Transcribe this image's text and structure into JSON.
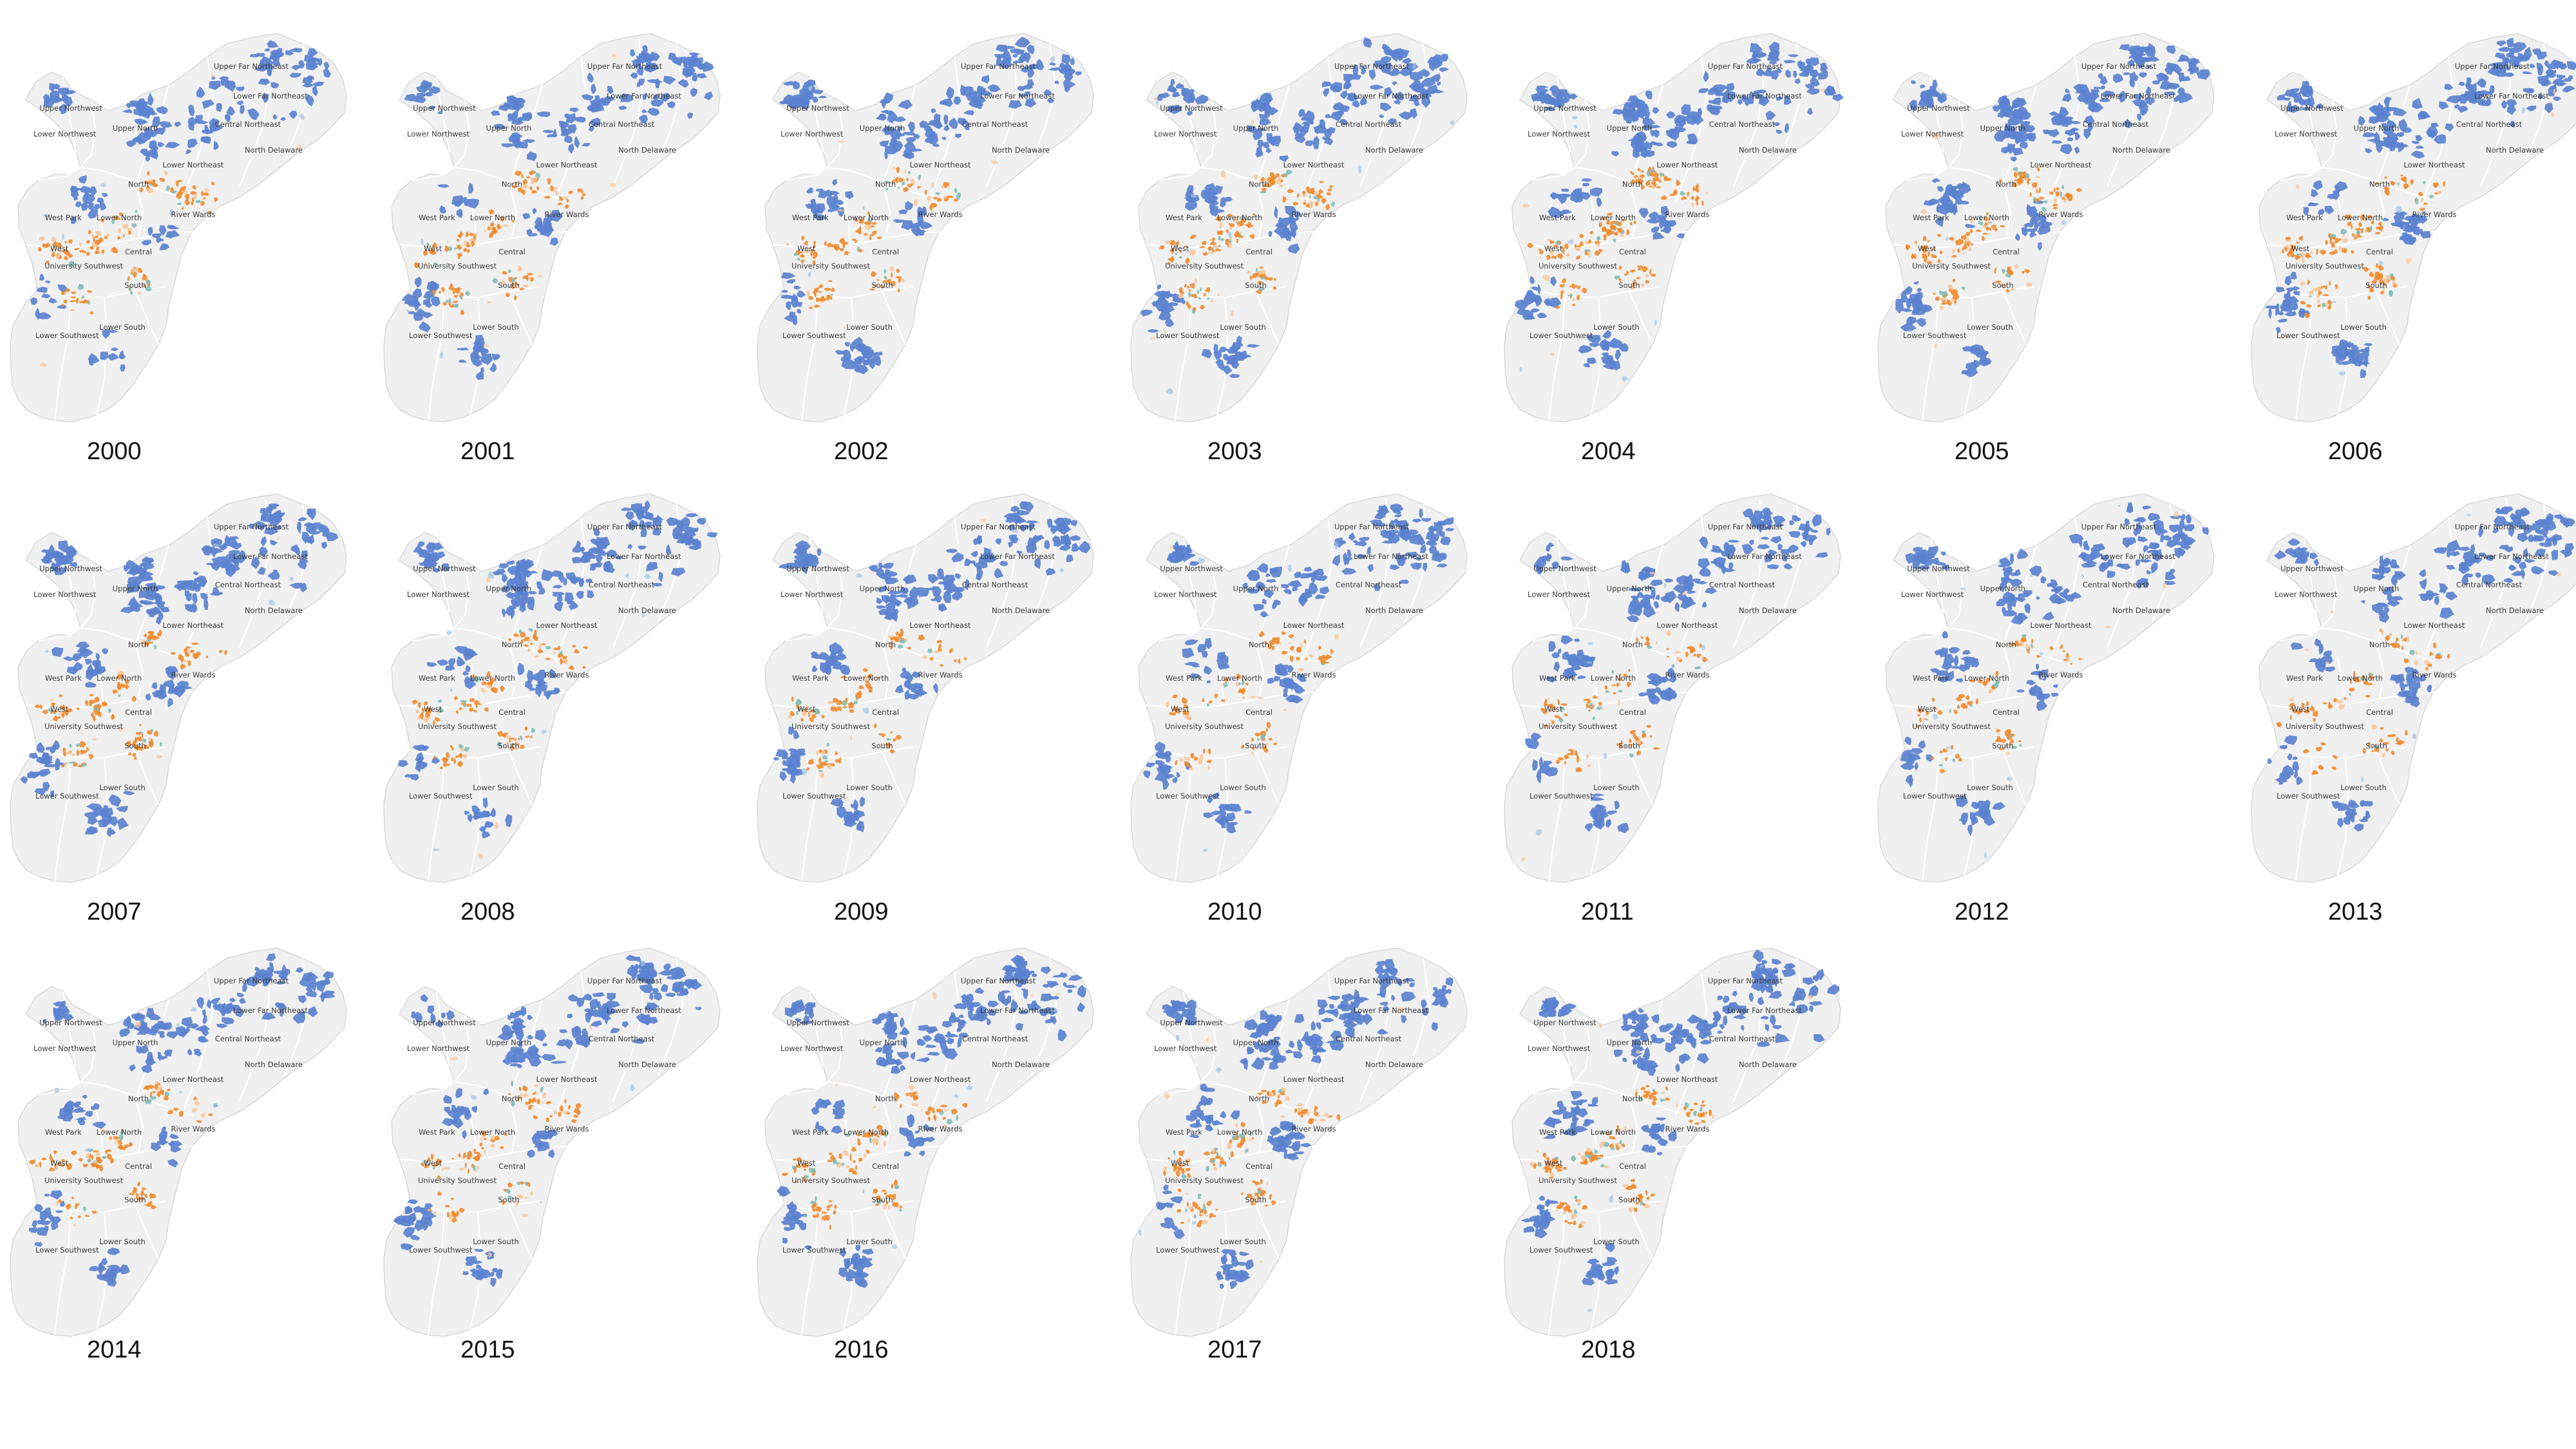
{
  "figure": {
    "colors": {
      "background": "#ffffff",
      "land": "#f0f0f0",
      "boundary": "#d8d8d8",
      "blue": "#5b82cf",
      "orange": "#f08a2c",
      "light_orange": "#f8c89c",
      "teal": "#7fbcb8",
      "light_blue": "#9fc6e6"
    },
    "district_names": [
      "Upper Far Northeast",
      "Lower Far Northeast",
      "Upper Northwest",
      "Central Northeast",
      "Lower Northwest",
      "Upper North",
      "North Delaware",
      "Lower Northeast",
      "North",
      "West Park",
      "Lower North",
      "River Wards",
      "West",
      "Central",
      "University Southwest",
      "South",
      "Lower Southwest",
      "Lower South"
    ],
    "maps": [
      {
        "year": "2000",
        "blue_level": 0.45,
        "orange_level": 0.55
      },
      {
        "year": "2001",
        "blue_level": 0.52,
        "orange_level": 0.55
      },
      {
        "year": "2002",
        "blue_level": 0.62,
        "orange_level": 0.6
      },
      {
        "year": "2003",
        "blue_level": 0.68,
        "orange_level": 0.68
      },
      {
        "year": "2004",
        "blue_level": 0.8,
        "orange_level": 0.72
      },
      {
        "year": "2005",
        "blue_level": 0.82,
        "orange_level": 0.7
      },
      {
        "year": "2006",
        "blue_level": 0.85,
        "orange_level": 0.6
      },
      {
        "year": "2007",
        "blue_level": 0.78,
        "orange_level": 0.55
      },
      {
        "year": "2008",
        "blue_level": 0.7,
        "orange_level": 0.48
      },
      {
        "year": "2009",
        "blue_level": 0.66,
        "orange_level": 0.38
      },
      {
        "year": "2010",
        "blue_level": 0.62,
        "orange_level": 0.32
      },
      {
        "year": "2011",
        "blue_level": 0.55,
        "orange_level": 0.3
      },
      {
        "year": "2012",
        "blue_level": 0.56,
        "orange_level": 0.28
      },
      {
        "year": "2013",
        "blue_level": 0.52,
        "orange_level": 0.26
      },
      {
        "year": "2014",
        "blue_level": 0.48,
        "orange_level": 0.36
      },
      {
        "year": "2015",
        "blue_level": 0.56,
        "orange_level": 0.42
      },
      {
        "year": "2016",
        "blue_level": 0.62,
        "orange_level": 0.5
      },
      {
        "year": "2017",
        "blue_level": 0.66,
        "orange_level": 0.6
      },
      {
        "year": "2018",
        "blue_level": 0.72,
        "orange_level": 0.7
      }
    ]
  }
}
